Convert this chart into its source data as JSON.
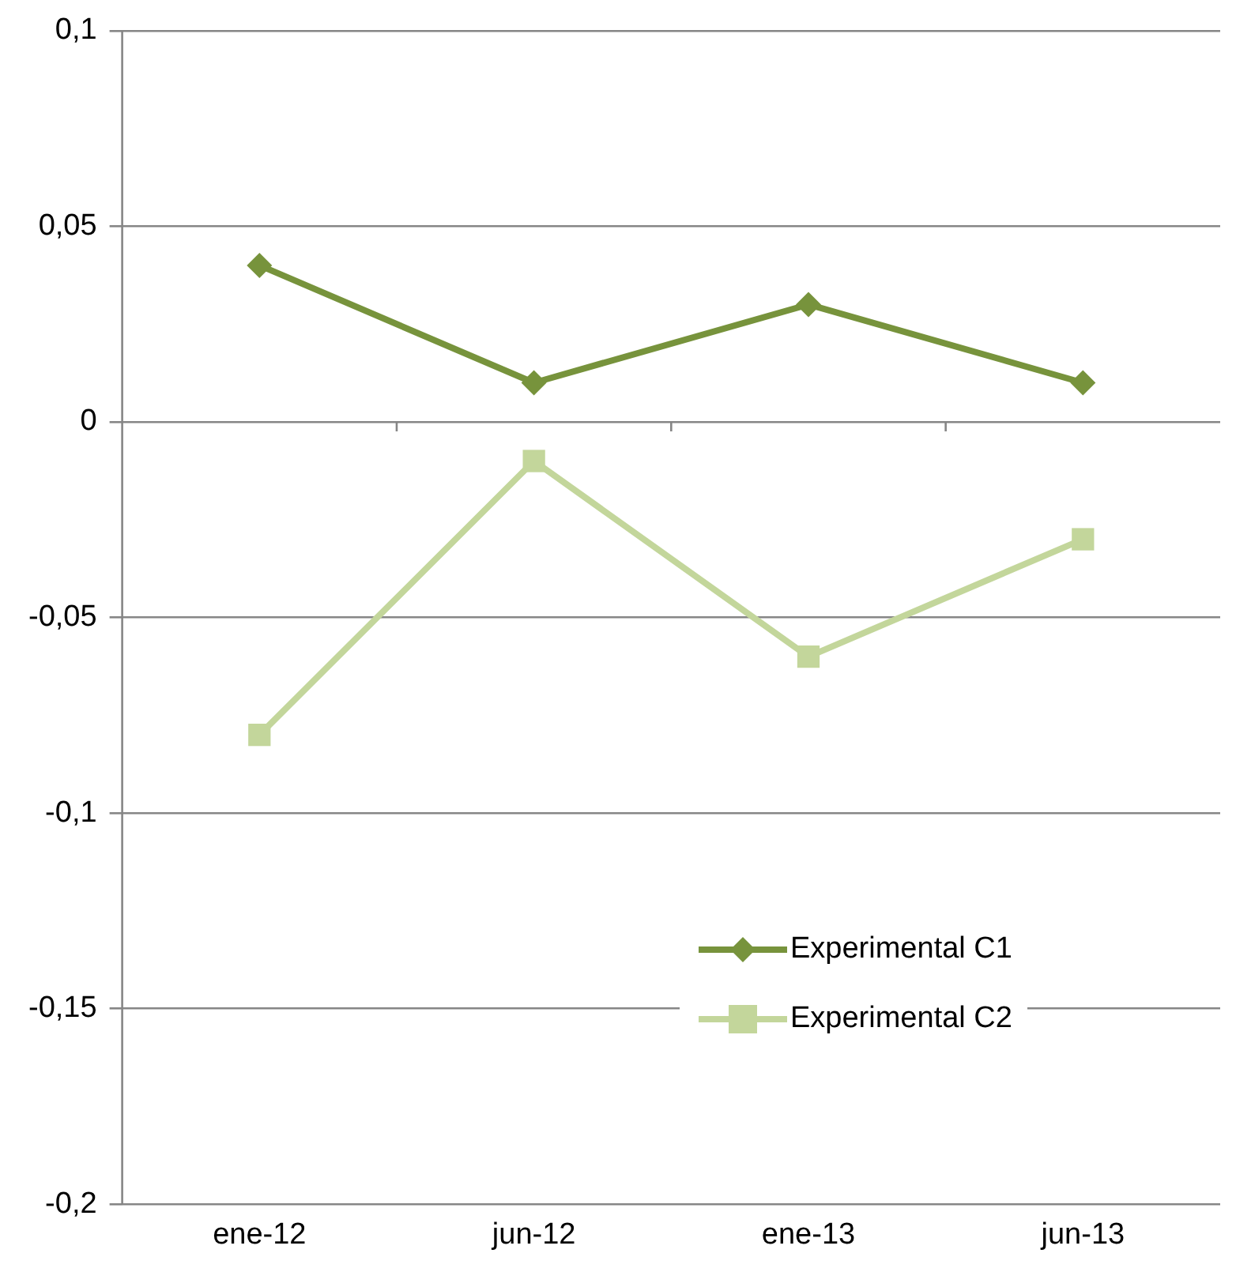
{
  "chart_data": {
    "type": "line",
    "categories": [
      "ene-12",
      "jun-12",
      "ene-13",
      "jun-13"
    ],
    "series": [
      {
        "name": "Experimental C1",
        "color": "#77933c",
        "marker": "diamond",
        "values": [
          0.04,
          0.01,
          0.03,
          0.01
        ]
      },
      {
        "name": "Experimental C2",
        "color": "#c3d69b",
        "marker": "square",
        "values": [
          -0.08,
          -0.01,
          -0.06,
          -0.03
        ]
      }
    ],
    "ylim": [
      -0.2,
      0.1
    ],
    "yticks": [
      {
        "value": -0.2,
        "label": "-0,2"
      },
      {
        "value": -0.15,
        "label": "-0,15"
      },
      {
        "value": -0.1,
        "label": "-0,1"
      },
      {
        "value": -0.05,
        "label": "-0,05"
      },
      {
        "value": 0,
        "label": "0"
      },
      {
        "value": 0.05,
        "label": "0,05"
      },
      {
        "value": 0.1,
        "label": "0,1"
      }
    ],
    "grid": "y",
    "legend": "bottom right",
    "line_style": "solid"
  }
}
